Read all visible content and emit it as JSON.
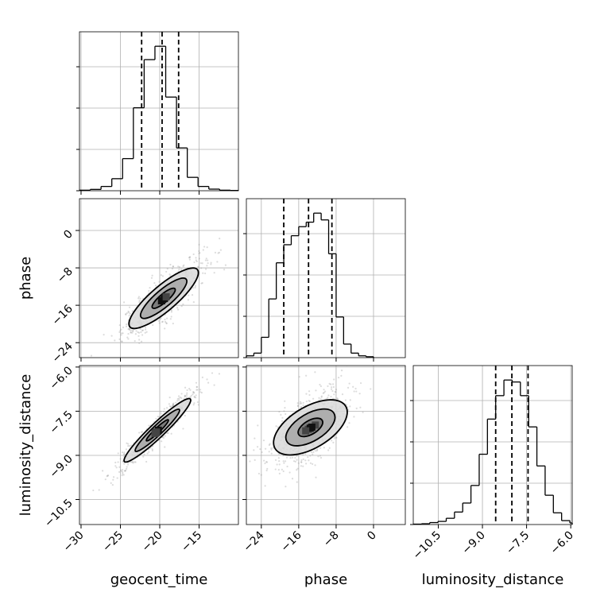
{
  "chart_data": {
    "type": "corner",
    "parameters": [
      "geocent_time",
      "phase",
      "luminosity_distance"
    ],
    "colors": {
      "hist": "#000000",
      "contour": "#000000",
      "quantile": "#000000",
      "scatter": "#9a9a9a",
      "grid": "#b0b0b0"
    },
    "grid": true,
    "quantiles": {
      "geocent_time": [
        -22.3,
        -19.7,
        -17.6
      ],
      "phase": [
        -19.2,
        -13.9,
        -8.9
      ],
      "luminosity_distance": [
        -8.55,
        -8.0,
        -7.45
      ]
    },
    "ranges": {
      "geocent_time": [
        -30.2,
        -10.0
      ],
      "phase": [
        -27.2,
        6.8
      ],
      "luminosity_distance": [
        -11.35,
        -5.95
      ]
    },
    "ticks": {
      "geocent_time": {
        "values": [
          -30,
          -25,
          -20,
          -15
        ],
        "labels": [
          "−30",
          "−25",
          "−20",
          "−15"
        ]
      },
      "phase": {
        "values": [
          -24,
          -16,
          -8,
          0
        ],
        "labels": [
          "−24",
          "−16",
          "−8",
          "0"
        ]
      },
      "luminosity_distance": {
        "values": [
          -10.5,
          -9.0,
          -7.5,
          -6.0
        ],
        "labels": [
          "−10.5",
          "−9.0",
          "−7.5",
          "−6.0"
        ]
      }
    },
    "histograms": [
      {
        "param": "geocent_time",
        "bin_edges": [
          -30.2,
          -28.83,
          -27.46,
          -26.09,
          -24.72,
          -23.35,
          -21.98,
          -20.61,
          -19.24,
          -17.87,
          -16.5,
          -15.13,
          -13.76,
          -12.39,
          -11.02,
          -10.0
        ],
        "counts": [
          2,
          5,
          16,
          45,
          120,
          310,
          490,
          540,
          350,
          160,
          50,
          16,
          6,
          2,
          1
        ]
      },
      {
        "param": "phase",
        "bin_edges": [
          -27.2,
          -25.6,
          -24.0,
          -22.4,
          -20.8,
          -19.2,
          -17.6,
          -16.0,
          -14.4,
          -12.8,
          -11.2,
          -9.6,
          -8.0,
          -6.4,
          -4.8,
          -3.2,
          -1.6,
          0.0
        ],
        "counts": [
          4,
          10,
          45,
          130,
          210,
          250,
          270,
          290,
          300,
          320,
          305,
          230,
          90,
          30,
          10,
          4,
          2
        ]
      },
      {
        "param": "luminosity_distance",
        "bin_edges": [
          -11.35,
          -11.07,
          -10.79,
          -10.51,
          -10.23,
          -9.95,
          -9.67,
          -9.39,
          -9.11,
          -8.83,
          -8.55,
          -8.27,
          -7.99,
          -7.71,
          -7.43,
          -7.15,
          -6.87,
          -6.59,
          -6.31,
          -6.03,
          -5.95
        ],
        "counts": [
          1,
          2,
          5,
          8,
          16,
          32,
          55,
          100,
          180,
          270,
          330,
          370,
          365,
          330,
          250,
          150,
          75,
          30,
          10,
          4
        ]
      }
    ],
    "pairs": [
      {
        "x": "geocent_time",
        "y": "phase",
        "correlation": 0.85,
        "center": [
          -19.5,
          -14.5
        ],
        "contour_levels": [
          0.5,
          1.0,
          1.5
        ]
      },
      {
        "x": "geocent_time",
        "y": "luminosity_distance",
        "correlation": 0.95,
        "center": [
          -20.3,
          -8.15
        ],
        "contour_levels": [
          0.5,
          1.0,
          1.5
        ]
      },
      {
        "x": "phase",
        "y": "luminosity_distance",
        "correlation": 0.6,
        "center": [
          -13.5,
          -8.05
        ],
        "contour_levels": [
          0.5,
          1.0,
          1.5
        ]
      }
    ]
  }
}
